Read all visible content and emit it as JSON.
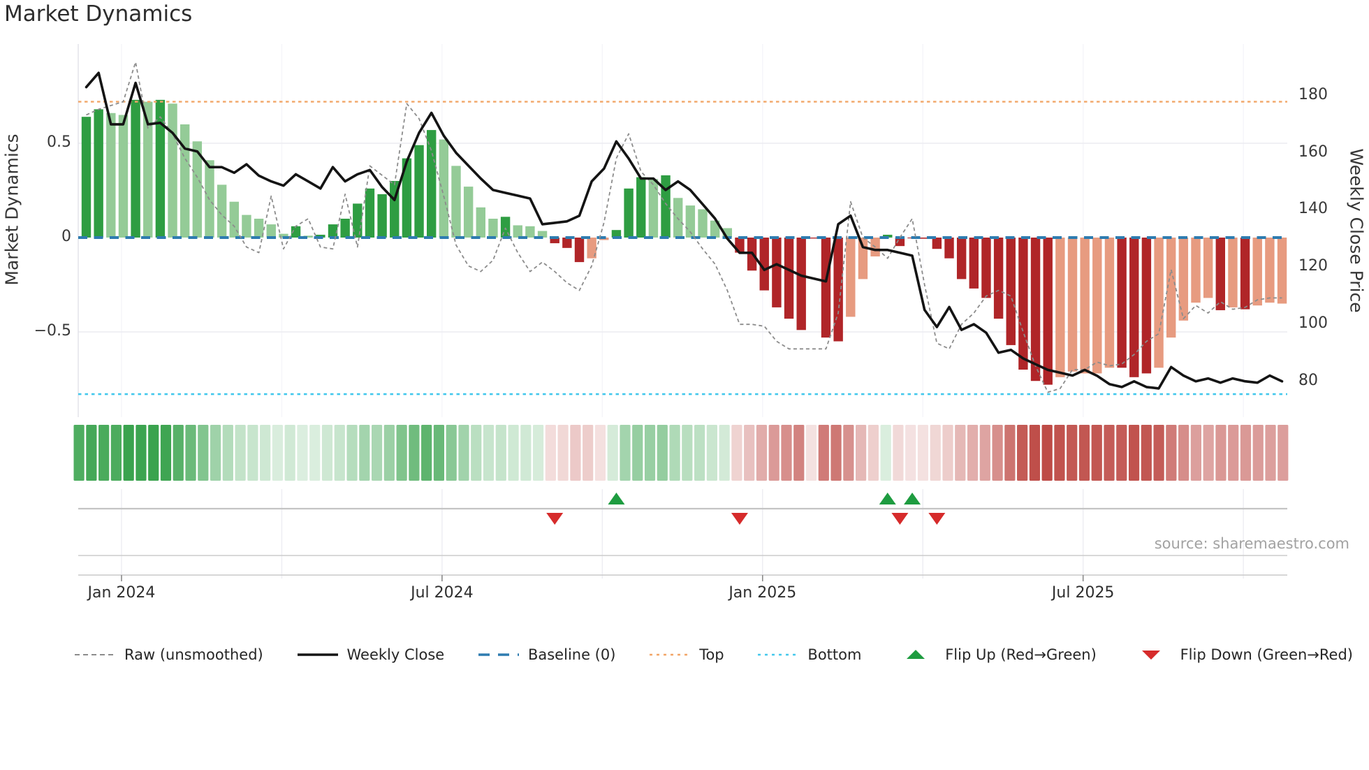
{
  "title": "Market Dynamics",
  "source_note": "source: sharemaestro.com",
  "colors": {
    "dark_green": "#2e9d42",
    "light_green": "#94cb97",
    "dark_red": "#b02528",
    "salmon": "#e79b80",
    "close_line": "#141414",
    "raw_line": "#8c8c8c",
    "baseline": "#2e7cb0",
    "top_line": "#f2a668",
    "bottom_line": "#44c8ec",
    "flip_up": "#1e9c40",
    "flip_down": "#d62b2b",
    "grid": "#ebebf1",
    "axis_text": "#383838",
    "muted_text": "#a2a2a2",
    "heat_green_base": "#2f9e44",
    "heat_red_base": "#be4b46"
  },
  "axes": {
    "left_title": "Market Dynamics",
    "right_title": "Weekly Close Price",
    "left_ticks": [
      {
        "label": "0.5",
        "value": 0.5
      },
      {
        "label": "0",
        "value": 0
      },
      {
        "label": "−0.5",
        "value": -0.5
      }
    ],
    "right_ticks": [
      {
        "label": "180",
        "value": 180
      },
      {
        "label": "160",
        "value": 160
      },
      {
        "label": "140",
        "value": 140
      },
      {
        "label": "120",
        "value": 120
      },
      {
        "label": "100",
        "value": 100
      },
      {
        "label": "80",
        "value": 80
      }
    ],
    "x_ticks": [
      {
        "label": "Jan 2024",
        "week": 2.86
      },
      {
        "label": "Jul 2024",
        "week": 28.86
      },
      {
        "label": "Jan 2025",
        "week": 54.86
      },
      {
        "label": "Jul 2025",
        "week": 80.86
      }
    ],
    "quarter_grid_weeks": [
      2.86,
      15.86,
      28.86,
      41.86,
      54.86,
      67.86,
      80.86,
      93.86
    ]
  },
  "legend": [
    {
      "swatch": "dash-gray",
      "label": "Raw (unsmoothed)"
    },
    {
      "swatch": "solid-black",
      "label": "Weekly Close"
    },
    {
      "swatch": "dash-blue",
      "label": "Baseline (0)"
    },
    {
      "swatch": "dot-orange",
      "label": "Top"
    },
    {
      "swatch": "dot-cyan",
      "label": "Bottom"
    },
    {
      "swatch": "tri-up",
      "label": "Flip Up (Red→Green)"
    },
    {
      "swatch": "tri-down",
      "label": "Flip Down (Green→Red)"
    }
  ],
  "chart_data": {
    "type": "combo: weekly bars (left axis) + smoothed/raw oscillator lines + price line (right axis) + heatmap strip + flip markers",
    "x_unit": "weeks, late Dec 2023 – Oct 2025",
    "n_weeks": 98,
    "left_axis_label": "Market Dynamics",
    "right_axis_label": "Weekly Close Price",
    "left_axis_visible_ticks": [
      0.5,
      0,
      -0.5
    ],
    "right_axis_visible_ticks": [
      180,
      160,
      140,
      120,
      100,
      80
    ],
    "reference_lines": {
      "baseline": 0,
      "top": 0.72,
      "bottom": -0.83
    },
    "grid": "horizontal at ±0.5, faint quarterly verticals",
    "legend_position": "bottom row, spread full width",
    "series": [
      {
        "name": "Market Dynamics (smoothed bars)",
        "axis": "left",
        "values": [
          0.64,
          0.68,
          0.66,
          0.65,
          0.73,
          0.72,
          0.73,
          0.71,
          0.6,
          0.51,
          0.41,
          0.28,
          0.19,
          0.12,
          0.1,
          0.07,
          0.02,
          0.06,
          0.01,
          0.015,
          0.07,
          0.1,
          0.18,
          0.26,
          0.23,
          0.3,
          0.42,
          0.49,
          0.57,
          0.52,
          0.38,
          0.27,
          0.16,
          0.1,
          0.11,
          0.065,
          0.06,
          0.035,
          -0.03,
          -0.055,
          -0.13,
          -0.11,
          -0.013,
          0.04,
          0.26,
          0.32,
          0.31,
          0.33,
          0.21,
          0.17,
          0.15,
          0.09,
          0.05,
          -0.08,
          -0.175,
          -0.28,
          -0.37,
          -0.43,
          -0.49,
          -0.005,
          -0.53,
          -0.55,
          -0.42,
          -0.22,
          -0.1,
          0.015,
          -0.045,
          -0.004,
          -0.006,
          -0.06,
          -0.11,
          -0.22,
          -0.27,
          -0.32,
          -0.43,
          -0.57,
          -0.7,
          -0.76,
          -0.78,
          -0.74,
          -0.71,
          -0.72,
          -0.72,
          -0.69,
          -0.69,
          -0.74,
          -0.72,
          -0.69,
          -0.53,
          -0.44,
          -0.345,
          -0.32,
          -0.385,
          -0.37,
          -0.38,
          -0.36,
          -0.345,
          -0.35
        ],
        "bar_shades": [
          "dg",
          "dg",
          "lg",
          "lg",
          "dg",
          "lg",
          "dg",
          "lg",
          "lg",
          "lg",
          "lg",
          "lg",
          "lg",
          "lg",
          "lg",
          "lg",
          "lg",
          "dg",
          "lg",
          "dg",
          "dg",
          "dg",
          "dg",
          "dg",
          "dg",
          "dg",
          "dg",
          "dg",
          "dg",
          "lg",
          "lg",
          "lg",
          "lg",
          "lg",
          "dg",
          "lg",
          "lg",
          "lg",
          "dr",
          "dr",
          "dr",
          "ls",
          "ls",
          "dg",
          "dg",
          "dg",
          "lg",
          "dg",
          "lg",
          "lg",
          "lg",
          "lg",
          "lg",
          "dr",
          "dr",
          "dr",
          "dr",
          "dr",
          "dr",
          "dr",
          "dr",
          "dr",
          "ls",
          "ls",
          "ls",
          "dg",
          "dr",
          "dr",
          "dr",
          "dr",
          "dr",
          "dr",
          "dr",
          "dr",
          "dr",
          "dr",
          "dr",
          "dr",
          "dr",
          "ls",
          "ls",
          "ls",
          "ls",
          "ls",
          "dr",
          "dr",
          "dr",
          "ls",
          "ls",
          "ls",
          "ls",
          "ls",
          "dr",
          "ls",
          "dr",
          "ls",
          "ls",
          "ls"
        ]
      },
      {
        "name": "Raw (unsmoothed)",
        "axis": "left",
        "values": [
          0.65,
          0.68,
          0.7,
          0.72,
          0.93,
          0.58,
          0.64,
          0.55,
          0.42,
          0.32,
          0.2,
          0.12,
          0.06,
          -0.05,
          -0.08,
          0.22,
          -0.06,
          0.06,
          0.1,
          -0.05,
          -0.06,
          0.23,
          -0.05,
          0.38,
          0.33,
          0.28,
          0.71,
          0.63,
          0.46,
          0.22,
          -0.04,
          -0.15,
          -0.18,
          -0.12,
          0.05,
          -0.08,
          -0.18,
          -0.13,
          -0.18,
          -0.24,
          -0.28,
          -0.15,
          0.08,
          0.42,
          0.55,
          0.35,
          0.28,
          0.18,
          0.1,
          0.03,
          -0.06,
          -0.14,
          -0.28,
          -0.46,
          -0.46,
          -0.47,
          -0.55,
          -0.59,
          -0.59,
          -0.59,
          -0.59,
          -0.4,
          0.19,
          0.0,
          -0.05,
          -0.11,
          0.0,
          0.1,
          -0.25,
          -0.56,
          -0.59,
          -0.46,
          -0.4,
          -0.31,
          -0.28,
          -0.31,
          -0.5,
          -0.68,
          -0.82,
          -0.8,
          -0.7,
          -0.7,
          -0.66,
          -0.68,
          -0.67,
          -0.62,
          -0.55,
          -0.51,
          -0.17,
          -0.43,
          -0.36,
          -0.4,
          -0.34,
          -0.38,
          -0.37,
          -0.33,
          -0.32,
          -0.32
        ]
      },
      {
        "name": "Weekly Close",
        "axis": "right",
        "values": [
          183,
          188,
          170,
          170,
          184.5,
          170,
          170.5,
          167,
          161.5,
          160.5,
          155,
          155,
          153,
          156,
          152,
          150,
          148.5,
          152.5,
          150,
          147.5,
          155,
          150,
          152.5,
          154,
          148,
          143.5,
          157,
          167,
          174,
          166,
          160,
          155.5,
          151,
          147,
          146,
          145,
          144,
          135,
          135.5,
          136,
          138,
          150,
          154.5,
          164,
          158,
          151,
          151,
          147,
          150,
          147,
          142,
          137,
          130,
          125,
          125,
          119,
          121,
          119,
          117,
          116,
          115,
          135,
          138,
          127,
          126,
          126,
          125,
          124,
          105,
          99,
          106,
          98,
          100,
          97,
          90,
          91,
          88,
          86,
          84,
          83,
          82,
          84,
          81.9,
          79,
          78,
          80,
          78,
          77.5,
          85,
          82,
          80,
          81,
          79.5,
          81,
          80,
          79.5,
          82,
          80
        ]
      }
    ],
    "markers": {
      "flip_up_weeks": [
        43,
        65,
        67
      ],
      "flip_down_weeks": [
        38,
        53,
        66,
        69
      ]
    },
    "heatmap_strip": "one cell per week below main plot; green for positive, red for negative, color intensity proportional to |value|"
  }
}
